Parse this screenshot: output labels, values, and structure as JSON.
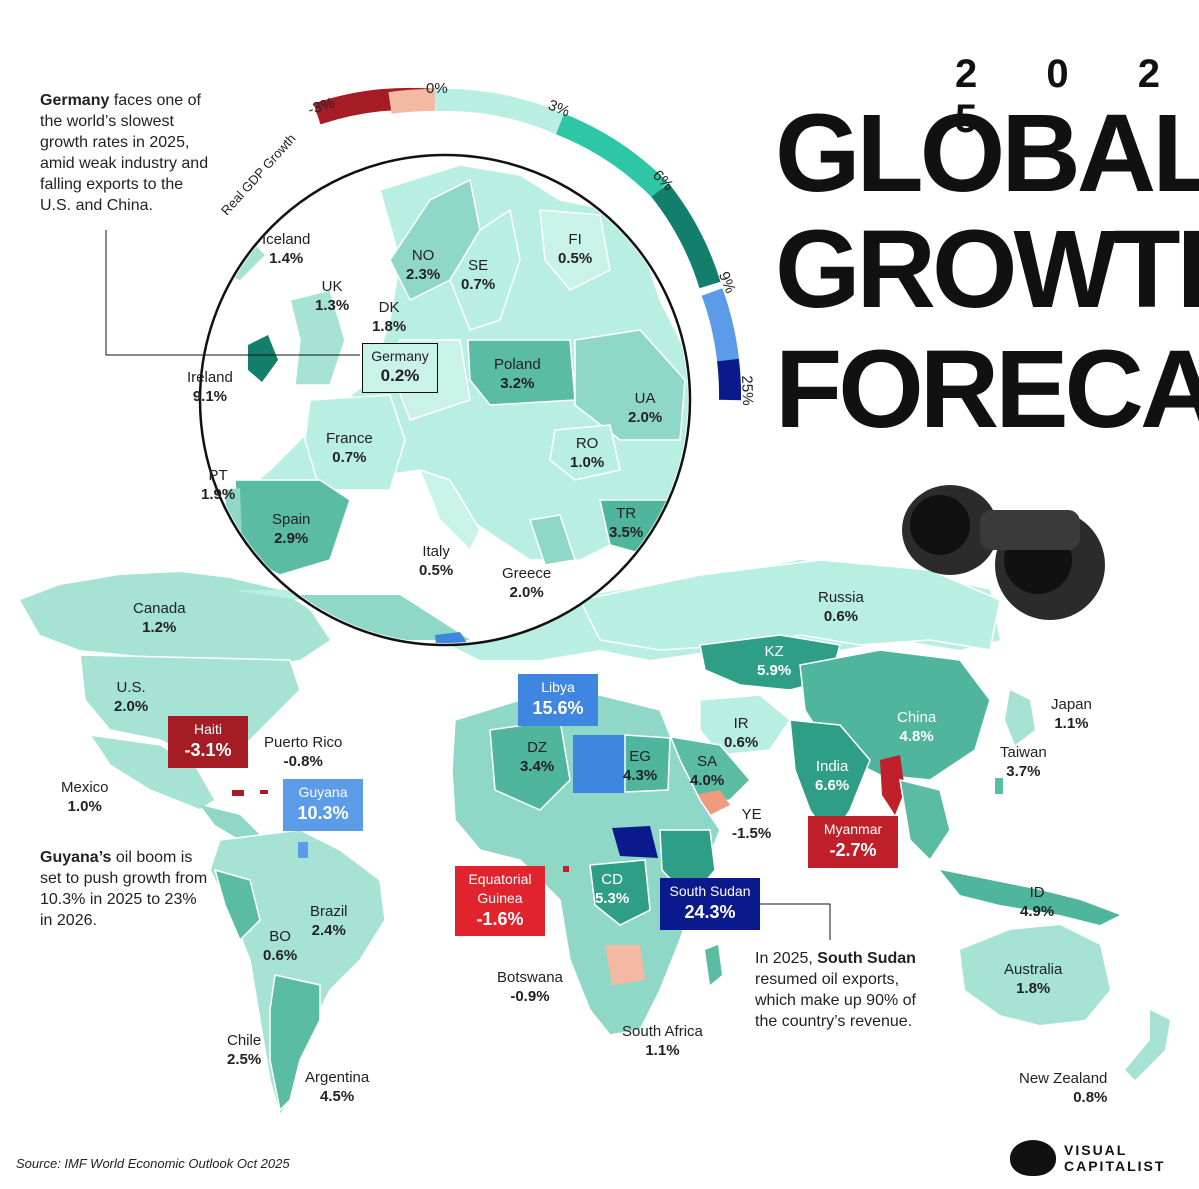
{
  "title": {
    "year": "2 0 2 5",
    "line1": "GLOBAL",
    "line2": "GROWTH",
    "line3": "FORECAST"
  },
  "scale": {
    "label": "Real GDP Growth",
    "ticks": [
      "-3%",
      "0%",
      "3%",
      "6%",
      "9%",
      "25%"
    ],
    "colors": {
      "neg_strong": "#a51c25",
      "neg_light": "#f3b9a3",
      "low": "#b9eee3",
      "mid": "#2ec7a6",
      "high": "#127e6b",
      "very_high": "#5b9be8",
      "extreme": "#0a1a8c"
    }
  },
  "europe": [
    {
      "name": "Iceland",
      "value": "1.4%"
    },
    {
      "name": "NO",
      "value": "2.3%"
    },
    {
      "name": "SE",
      "value": "0.7%"
    },
    {
      "name": "FI",
      "value": "0.5%"
    },
    {
      "name": "UK",
      "value": "1.3%"
    },
    {
      "name": "DK",
      "value": "1.8%"
    },
    {
      "name": "Ireland",
      "value": "9.1%"
    },
    {
      "name": "Poland",
      "value": "3.2%"
    },
    {
      "name": "UA",
      "value": "2.0%"
    },
    {
      "name": "France",
      "value": "0.7%"
    },
    {
      "name": "RO",
      "value": "1.0%"
    },
    {
      "name": "PT",
      "value": "1.9%"
    },
    {
      "name": "Spain",
      "value": "2.9%"
    },
    {
      "name": "TR",
      "value": "3.5%"
    },
    {
      "name": "Italy",
      "value": "0.5%"
    },
    {
      "name": "Greece",
      "value": "2.0%"
    }
  ],
  "germany": {
    "name": "Germany",
    "value": "0.2%"
  },
  "world": [
    {
      "name": "Russia",
      "value": "0.6%"
    },
    {
      "name": "Canada",
      "value": "1.2%"
    },
    {
      "name": "KZ",
      "value": "5.9%"
    },
    {
      "name": "U.S.",
      "value": "2.0%"
    },
    {
      "name": "Japan",
      "value": "1.1%"
    },
    {
      "name": "IR",
      "value": "0.6%"
    },
    {
      "name": "China",
      "value": "4.8%"
    },
    {
      "name": "Puerto Rico",
      "value": "-0.8%"
    },
    {
      "name": "DZ",
      "value": "3.4%"
    },
    {
      "name": "EG",
      "value": "4.3%"
    },
    {
      "name": "Taiwan",
      "value": "3.7%"
    },
    {
      "name": "SA",
      "value": "4.0%"
    },
    {
      "name": "India",
      "value": "6.6%"
    },
    {
      "name": "Mexico",
      "value": "1.0%"
    },
    {
      "name": "YE",
      "value": "-1.5%"
    },
    {
      "name": "CD",
      "value": "5.3%"
    },
    {
      "name": "ID",
      "value": "4.9%"
    },
    {
      "name": "Brazil",
      "value": "2.4%"
    },
    {
      "name": "BO",
      "value": "0.6%"
    },
    {
      "name": "Australia",
      "value": "1.8%"
    },
    {
      "name": "Botswana",
      "value": "-0.9%"
    },
    {
      "name": "Chile",
      "value": "2.5%"
    },
    {
      "name": "South Africa",
      "value": "1.1%"
    },
    {
      "name": "Argentina",
      "value": "4.5%"
    },
    {
      "name": "New Zealand",
      "value": "0.8%"
    }
  ],
  "callouts": {
    "haiti": {
      "name": "Haiti",
      "value": "-3.1%"
    },
    "libya": {
      "name": "Libya",
      "value": "15.6%"
    },
    "guyana": {
      "name": "Guyana",
      "value": "10.3%"
    },
    "myanmar": {
      "name": "Myanmar",
      "value": "-2.7%"
    },
    "eq_guinea": {
      "name1": "Equatorial",
      "name2": "Guinea",
      "value": "-1.6%"
    },
    "south_sudan": {
      "name": "South Sudan",
      "value": "24.3%"
    }
  },
  "notes": {
    "germany": {
      "bold": "Germany",
      "text": " faces one of the world’s slowest growth rates in 2025, amid weak industry and falling exports to the U.S. and China."
    },
    "guyana": {
      "bold": "Guyana’s",
      "text": " oil boom is set to push growth from 10.3% in 2025 to 23% in 2026."
    },
    "south_sudan": {
      "pre": "In 2025, ",
      "bold": "South Sudan",
      "text": " resumed oil exports, which make up 90% of the country’s revenue."
    }
  },
  "source": "Source: IMF World Economic Outlook Oct 2025",
  "brand": {
    "line1": "VISUAL",
    "line2": "CAPITALIST"
  }
}
